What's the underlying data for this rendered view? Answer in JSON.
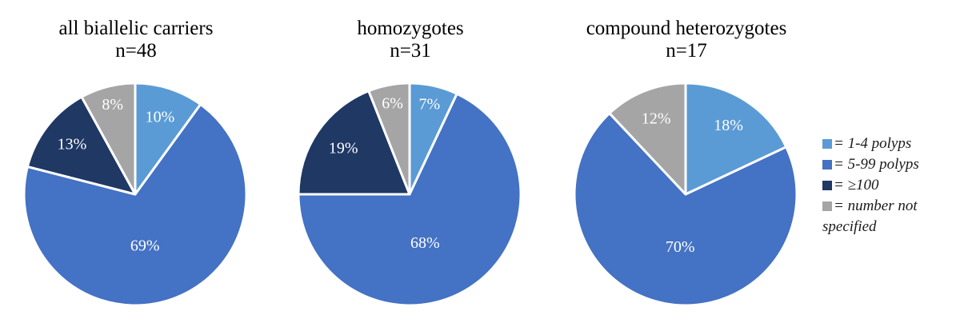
{
  "colors": {
    "c1_4": "#5b9bd5",
    "c5_99": "#4472c4",
    "c100": "#1f3864",
    "cNS": "#a5a5a5"
  },
  "chart_data": [
    {
      "type": "pie",
      "title": "all biallelic carriers",
      "subtitle": "n=48",
      "slices": [
        {
          "category": "1-4 polyps",
          "value": 10,
          "label": "10%"
        },
        {
          "category": "5-99 polyps",
          "value": 69,
          "label": "69%"
        },
        {
          "category": "≥100",
          "value": 13,
          "label": "13%"
        },
        {
          "category": "number not specified",
          "value": 8,
          "label": "8%"
        }
      ]
    },
    {
      "type": "pie",
      "title": "homozygotes",
      "subtitle": "n=31",
      "slices": [
        {
          "category": "1-4 polyps",
          "value": 7,
          "label": "7%"
        },
        {
          "category": "5-99 polyps",
          "value": 68,
          "label": "68%"
        },
        {
          "category": "≥100",
          "value": 19,
          "label": "19%"
        },
        {
          "category": "number not specified",
          "value": 6,
          "label": "6%"
        }
      ]
    },
    {
      "type": "pie",
      "title": "compound heterozygotes",
      "subtitle": "n=17",
      "slices": [
        {
          "category": "1-4 polyps",
          "value": 18,
          "label": "18%"
        },
        {
          "category": "5-99 polyps",
          "value": 70,
          "label": "70%"
        },
        {
          "category": "number not specified",
          "value": 12,
          "label": "12%"
        }
      ]
    }
  ],
  "legend": {
    "items": [
      {
        "key": "c1_4",
        "text": "= 1-4 polyps"
      },
      {
        "key": "c5_99",
        "text": "= 5-99 polyps"
      },
      {
        "key": "c100",
        "text": "= ≥100"
      },
      {
        "key": "cNS",
        "text": "= number not"
      }
    ],
    "continuation": "specified",
    "placement": "right"
  }
}
